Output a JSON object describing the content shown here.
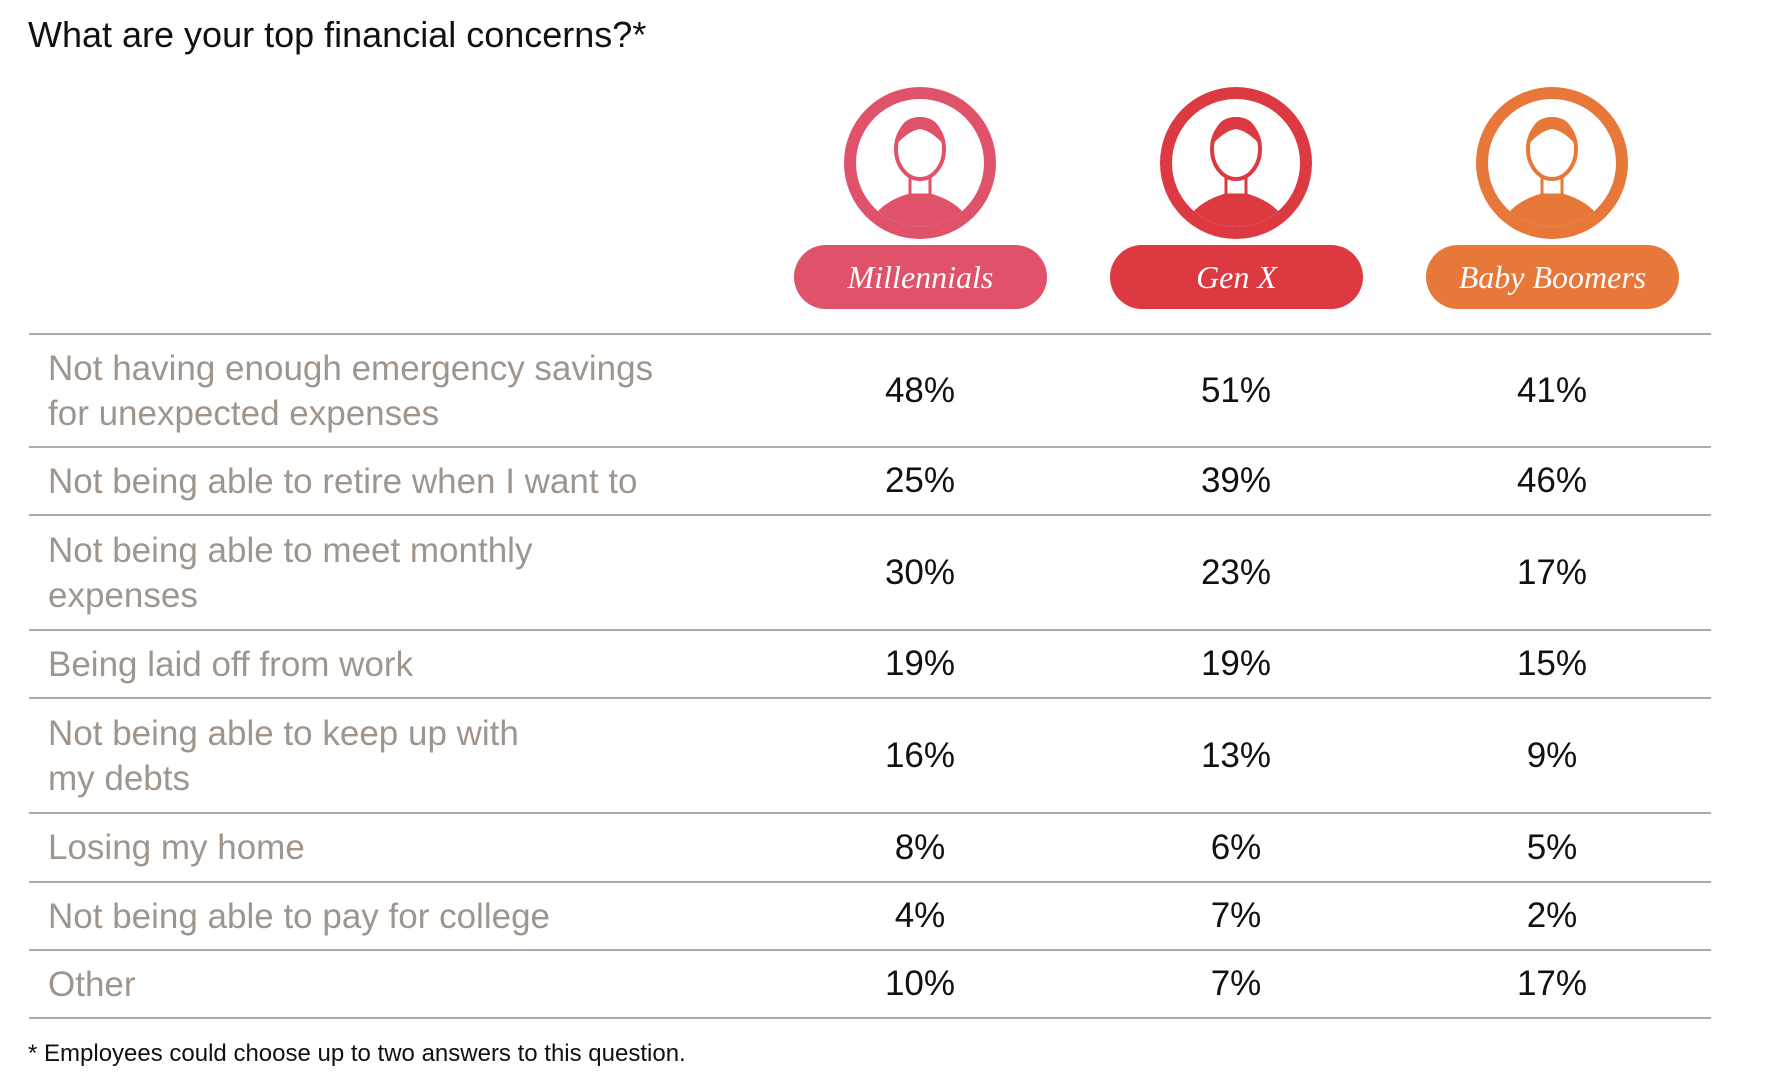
{
  "title": "What are your top financial concerns?*",
  "columns": [
    {
      "label": "Millennials",
      "color": "#e0516a"
    },
    {
      "label": "Gen X",
      "color": "#dc3a40"
    },
    {
      "label": "Baby Boomers",
      "color": "#e8783a"
    }
  ],
  "rows": [
    {
      "label": "Not having enough emergency savings\nfor unexpected expenses",
      "values": [
        "48%",
        "51%",
        "41%"
      ]
    },
    {
      "label": "Not being able to retire when I want to",
      "values": [
        "25%",
        "39%",
        "46%"
      ]
    },
    {
      "label": "Not being able to meet monthly\nexpenses",
      "values": [
        "30%",
        "23%",
        "17%"
      ]
    },
    {
      "label": "Being laid off from work",
      "values": [
        "19%",
        "19%",
        "15%"
      ]
    },
    {
      "label": "Not being able to keep up with\nmy debts",
      "values": [
        "16%",
        "13%",
        "9%"
      ]
    },
    {
      "label": "Losing my home",
      "values": [
        "8%",
        "6%",
        "5%"
      ]
    },
    {
      "label": "Not being able to pay for college",
      "values": [
        "4%",
        "7%",
        "2%"
      ]
    },
    {
      "label": "Other",
      "values": [
        "10%",
        "7%",
        "17%"
      ]
    }
  ],
  "footnote": "* Employees could choose up to two answers to this question."
}
